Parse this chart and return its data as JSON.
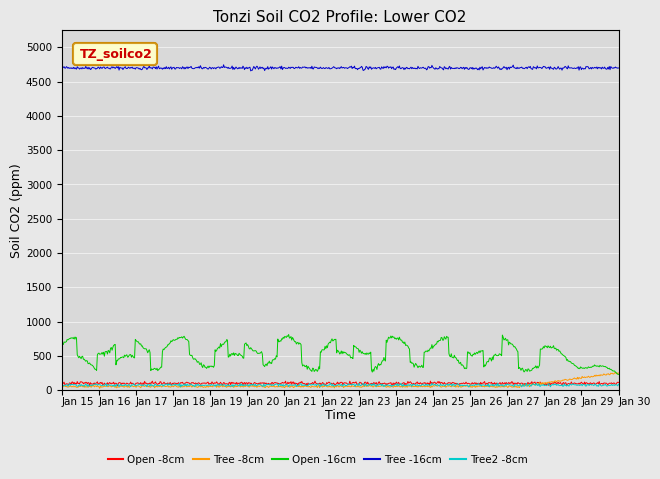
{
  "title": "Tonzi Soil CO2 Profile: Lower CO2",
  "xlabel": "Time",
  "ylabel": "Soil CO2 (ppm)",
  "ylim": [
    0,
    5250
  ],
  "yticks": [
    0,
    500,
    1000,
    1500,
    2000,
    2500,
    3000,
    3500,
    4000,
    4500,
    5000
  ],
  "date_start": 15,
  "date_end": 30,
  "xtick_labels": [
    "Jan 15",
    "Jan 16",
    "Jan 17",
    "Jan 18",
    "Jan 19",
    "Jan 20",
    "Jan 21",
    "Jan 22",
    "Jan 23",
    "Jan 24",
    "Jan 25",
    "Jan 26",
    "Jan 27",
    "Jan 28",
    "Jan 29",
    "Jan 30"
  ],
  "legend_box_label": "TZ_soilco2",
  "series_labels": [
    "Open -8cm",
    "Tree -8cm",
    "Open -16cm",
    "Tree -16cm",
    "Tree2 -8cm"
  ],
  "series_colors": [
    "#ff0000",
    "#ff9900",
    "#00cc00",
    "#0000cc",
    "#00cccc"
  ],
  "background_color": "#d9d9d9",
  "fig_background": "#e8e8e8",
  "title_fontsize": 11,
  "axis_label_fontsize": 9,
  "tick_fontsize": 7.5
}
